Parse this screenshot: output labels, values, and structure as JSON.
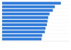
{
  "chart_data": {
    "type": "bar",
    "orientation": "horizontal",
    "categories": [
      null,
      null,
      null,
      null,
      null,
      null,
      null,
      null,
      null,
      null,
      null
    ],
    "values": [
      88,
      79,
      76,
      71,
      69,
      68,
      67,
      65,
      64,
      60,
      59
    ],
    "color": "#2f7bd9",
    "xlim": [
      0,
      100
    ],
    "grid": false,
    "tick_labels": false
  }
}
